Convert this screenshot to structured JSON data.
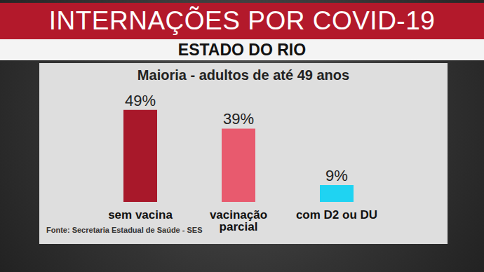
{
  "chart_data": {
    "type": "bar",
    "title": "INTERNAÇÕES POR COVID-19",
    "subtitle": "ESTADO DO RIO",
    "annotations": [
      "Maioria - adultos de até 49 anos",
      "Fonte: Secretaria Estadual de Saúde - SES"
    ],
    "categories": [
      "sem vacina",
      "vacinação parcial",
      "com D2 ou DU"
    ],
    "values": [
      49,
      39,
      9
    ],
    "value_labels": [
      "49%",
      "39%",
      "9%"
    ],
    "colors": [
      "#a8182a",
      "#e85a6e",
      "#1fd3f2"
    ],
    "ylim": [
      0,
      50
    ],
    "data_labels": true,
    "tick_labels": "x",
    "grid": false
  }
}
